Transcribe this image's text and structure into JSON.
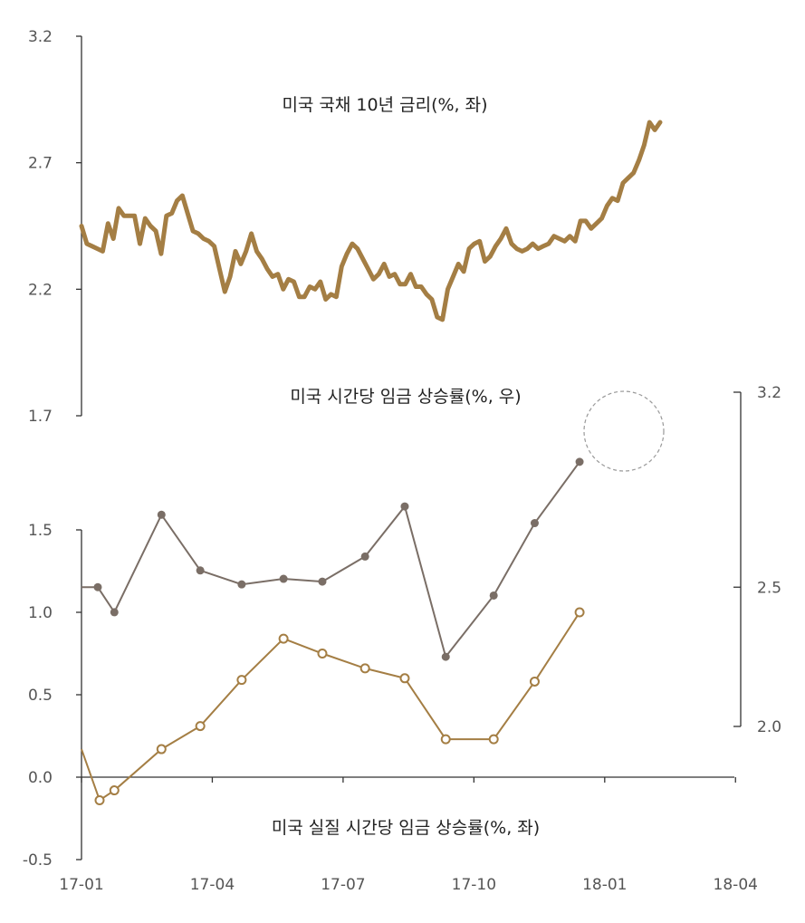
{
  "chart_data": [
    {
      "type": "line",
      "title": "미국 국채 10년 금리(%, 좌)",
      "ylim": [
        1.7,
        3.2
      ],
      "yticks": [
        "3.2",
        "2.7",
        "2.2",
        "1.7"
      ],
      "x_range": [
        "17-01",
        "18-04"
      ],
      "color": "#a47e44",
      "series": [
        {
          "values": [
            2.45,
            2.38,
            2.37,
            2.36,
            2.35,
            2.46,
            2.4,
            2.52,
            2.49,
            2.49,
            2.49,
            2.38,
            2.48,
            2.45,
            2.43,
            2.34,
            2.49,
            2.5,
            2.55,
            2.57,
            2.5,
            2.43,
            2.42,
            2.4,
            2.39,
            2.37,
            2.28,
            2.19,
            2.25,
            2.35,
            2.3,
            2.35,
            2.42,
            2.35,
            2.32,
            2.28,
            2.25,
            2.26,
            2.2,
            2.24,
            2.23,
            2.17,
            2.17,
            2.21,
            2.2,
            2.23,
            2.16,
            2.18,
            2.17,
            2.29,
            2.34,
            2.38,
            2.36,
            2.32,
            2.28,
            2.24,
            2.26,
            2.3,
            2.25,
            2.26,
            2.22,
            2.22,
            2.26,
            2.21,
            2.21,
            2.18,
            2.16,
            2.09,
            2.08,
            2.2,
            2.25,
            2.3,
            2.27,
            2.36,
            2.38,
            2.39,
            2.31,
            2.33,
            2.37,
            2.4,
            2.44,
            2.38,
            2.36,
            2.35,
            2.36,
            2.38,
            2.36,
            2.37,
            2.38,
            2.41,
            2.4,
            2.39,
            2.41,
            2.39,
            2.47,
            2.47,
            2.44,
            2.46,
            2.48,
            2.53,
            2.56,
            2.55,
            2.62,
            2.64,
            2.66,
            2.71,
            2.77,
            2.86,
            2.83,
            2.86
          ]
        }
      ]
    },
    {
      "type": "line",
      "title": "미국 시간당 임금 상승률(%, 우)",
      "ylim": [
        2.0,
        3.2
      ],
      "yticks": [
        "3.2",
        "2.5",
        "2.0"
      ],
      "color": "#7a6e66",
      "series": [
        {
          "x": [
            "17-01",
            "17-02",
            "17-03",
            "17-04",
            "17-05",
            "17-06",
            "17-07",
            "17-08",
            "17-09",
            "17-10",
            "17-11",
            "17-12",
            "18-01"
          ],
          "values": [
            2.5,
            2.41,
            2.76,
            2.56,
            2.51,
            2.53,
            2.52,
            2.61,
            2.79,
            2.25,
            2.47,
            2.73,
            2.95
          ]
        }
      ]
    },
    {
      "type": "line",
      "title": "미국 실질 시간당 임금 상승률(%, 좌)",
      "ylim": [
        -0.5,
        1.5
      ],
      "yticks": [
        "1.5",
        "1.0",
        "0.5",
        "0.0",
        "-0.5"
      ],
      "xticks": [
        "17-01",
        "17-04",
        "17-07",
        "17-10",
        "18-01",
        "18-04"
      ],
      "color": "#a47e44",
      "series": [
        {
          "x": [
            "17-01",
            "17-02",
            "17-03",
            "17-04",
            "17-05",
            "17-06",
            "17-07",
            "17-08",
            "17-09",
            "17-10",
            "17-11",
            "17-12",
            "18-01"
          ],
          "values": [
            -0.14,
            -0.08,
            0.17,
            0.31,
            0.59,
            0.84,
            0.75,
            0.66,
            0.6,
            0.23,
            0.23,
            0.58,
            1.0
          ]
        }
      ]
    }
  ]
}
